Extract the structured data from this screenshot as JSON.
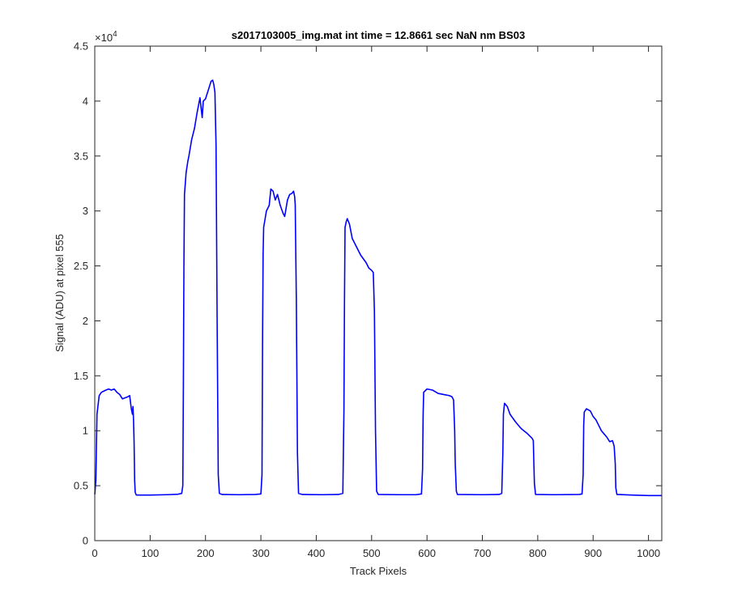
{
  "chart_data": {
    "type": "line",
    "title": "s2017103005_img.mat int time = 12.8661 sec  NaN nm BS03",
    "xlabel": "Track Pixels",
    "ylabel": "Signal (ADU) at pixel 555",
    "xlim": [
      0,
      1024
    ],
    "ylim": [
      0,
      45000
    ],
    "x_ticks": [
      0,
      100,
      200,
      300,
      400,
      500,
      600,
      700,
      800,
      900,
      1000
    ],
    "y_ticks": [
      0,
      0.5,
      1,
      1.5,
      2,
      2.5,
      3,
      3.5,
      4,
      4.5
    ],
    "y_tick_labels": [
      "0",
      "0.5",
      "1",
      "1.5",
      "2",
      "2.5",
      "3",
      "3.5",
      "4",
      "4.5"
    ],
    "y_exponent": {
      "base": "×10",
      "power": "4"
    },
    "grid": false,
    "legend": "none",
    "series": [
      {
        "color": "#0000ff",
        "points": [
          [
            0,
            4200
          ],
          [
            2,
            5500
          ],
          [
            4,
            11500
          ],
          [
            8,
            13200
          ],
          [
            12,
            13500
          ],
          [
            20,
            13700
          ],
          [
            25,
            13800
          ],
          [
            30,
            13700
          ],
          [
            35,
            13800
          ],
          [
            40,
            13500
          ],
          [
            45,
            13300
          ],
          [
            50,
            12900
          ],
          [
            55,
            13000
          ],
          [
            60,
            13100
          ],
          [
            63,
            13200
          ],
          [
            66,
            12000
          ],
          [
            68,
            11500
          ],
          [
            69,
            12200
          ],
          [
            70,
            11000
          ],
          [
            71,
            9000
          ],
          [
            72,
            5500
          ],
          [
            73,
            4400
          ],
          [
            75,
            4150
          ],
          [
            100,
            4150
          ],
          [
            130,
            4180
          ],
          [
            150,
            4220
          ],
          [
            157,
            4300
          ],
          [
            159,
            5000
          ],
          [
            160,
            14000
          ],
          [
            161,
            25000
          ],
          [
            162,
            31500
          ],
          [
            165,
            33500
          ],
          [
            168,
            34500
          ],
          [
            170,
            35000
          ],
          [
            175,
            36500
          ],
          [
            180,
            37500
          ],
          [
            185,
            39000
          ],
          [
            190,
            40300
          ],
          [
            194,
            38500
          ],
          [
            196,
            40000
          ],
          [
            200,
            40200
          ],
          [
            205,
            41000
          ],
          [
            210,
            41800
          ],
          [
            213,
            41900
          ],
          [
            215,
            41500
          ],
          [
            217,
            40800
          ],
          [
            219,
            36000
          ],
          [
            221,
            20000
          ],
          [
            223,
            6000
          ],
          [
            225,
            4300
          ],
          [
            230,
            4200
          ],
          [
            260,
            4180
          ],
          [
            290,
            4200
          ],
          [
            300,
            4250
          ],
          [
            302,
            6000
          ],
          [
            303,
            18000
          ],
          [
            304,
            26000
          ],
          [
            305,
            28500
          ],
          [
            310,
            30000
          ],
          [
            315,
            30500
          ],
          [
            318,
            32000
          ],
          [
            322,
            31800
          ],
          [
            326,
            31000
          ],
          [
            330,
            31500
          ],
          [
            335,
            30500
          ],
          [
            340,
            29800
          ],
          [
            343,
            29500
          ],
          [
            348,
            31000
          ],
          [
            352,
            31500
          ],
          [
            356,
            31600
          ],
          [
            359,
            31800
          ],
          [
            361,
            31300
          ],
          [
            362,
            30600
          ],
          [
            364,
            22000
          ],
          [
            366,
            8000
          ],
          [
            368,
            4300
          ],
          [
            375,
            4200
          ],
          [
            410,
            4180
          ],
          [
            440,
            4200
          ],
          [
            448,
            4300
          ],
          [
            450,
            12000
          ],
          [
            451,
            22000
          ],
          [
            452,
            28500
          ],
          [
            454,
            29000
          ],
          [
            456,
            29300
          ],
          [
            460,
            28800
          ],
          [
            465,
            27500
          ],
          [
            470,
            27000
          ],
          [
            480,
            26000
          ],
          [
            490,
            25300
          ],
          [
            495,
            24800
          ],
          [
            500,
            24600
          ],
          [
            503,
            24400
          ],
          [
            505,
            21000
          ],
          [
            507,
            10000
          ],
          [
            509,
            4500
          ],
          [
            512,
            4200
          ],
          [
            550,
            4180
          ],
          [
            580,
            4180
          ],
          [
            590,
            4250
          ],
          [
            592,
            6500
          ],
          [
            593,
            11500
          ],
          [
            594,
            13500
          ],
          [
            600,
            13800
          ],
          [
            610,
            13700
          ],
          [
            620,
            13400
          ],
          [
            630,
            13300
          ],
          [
            640,
            13200
          ],
          [
            645,
            13100
          ],
          [
            648,
            12800
          ],
          [
            650,
            10000
          ],
          [
            651,
            7000
          ],
          [
            653,
            4500
          ],
          [
            655,
            4200
          ],
          [
            700,
            4180
          ],
          [
            730,
            4200
          ],
          [
            735,
            4300
          ],
          [
            737,
            8000
          ],
          [
            738,
            11500
          ],
          [
            740,
            12500
          ],
          [
            745,
            12200
          ],
          [
            750,
            11500
          ],
          [
            760,
            10800
          ],
          [
            770,
            10200
          ],
          [
            780,
            9800
          ],
          [
            790,
            9300
          ],
          [
            792,
            9100
          ],
          [
            793,
            7000
          ],
          [
            794,
            5200
          ],
          [
            796,
            4200
          ],
          [
            830,
            4180
          ],
          [
            875,
            4200
          ],
          [
            880,
            4250
          ],
          [
            882,
            6000
          ],
          [
            883,
            10500
          ],
          [
            884,
            11700
          ],
          [
            888,
            12000
          ],
          [
            895,
            11800
          ],
          [
            900,
            11300
          ],
          [
            905,
            11000
          ],
          [
            910,
            10500
          ],
          [
            915,
            10000
          ],
          [
            920,
            9700
          ],
          [
            925,
            9400
          ],
          [
            930,
            9000
          ],
          [
            935,
            9100
          ],
          [
            938,
            8600
          ],
          [
            940,
            7000
          ],
          [
            941,
            4800
          ],
          [
            943,
            4200
          ],
          [
            970,
            4150
          ],
          [
            1000,
            4100
          ],
          [
            1024,
            4100
          ]
        ]
      }
    ]
  }
}
